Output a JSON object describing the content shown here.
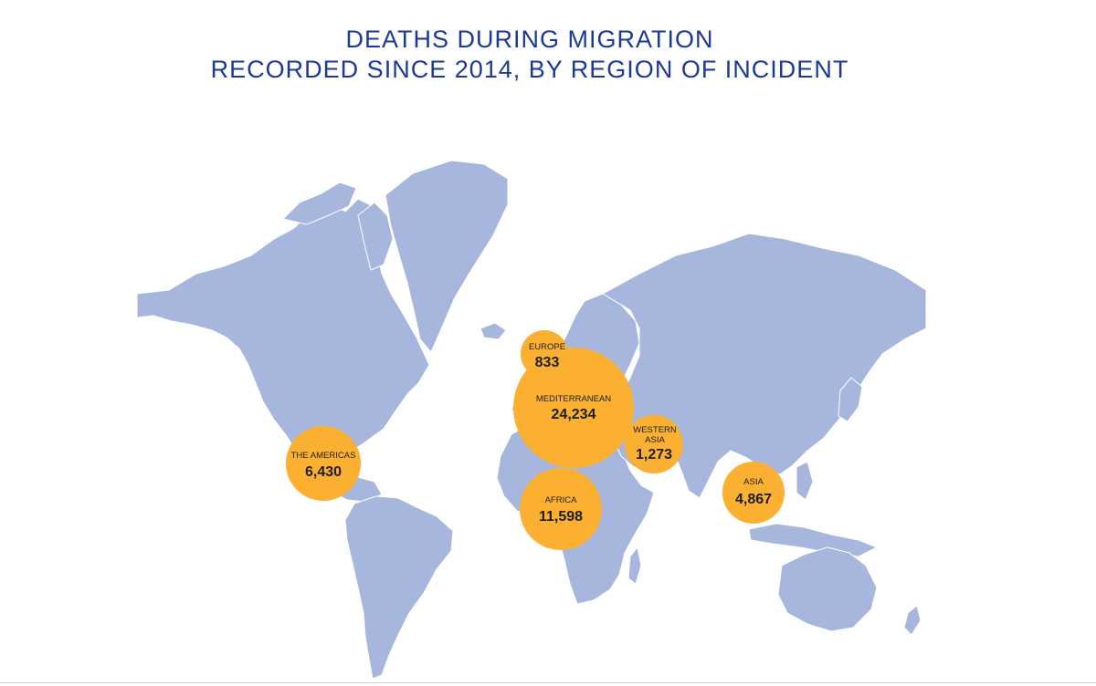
{
  "title": {
    "line1": "DEATHS DURING MIGRATION",
    "line2": "RECORDED SINCE 2014, BY REGION OF INCIDENT"
  },
  "colors": {
    "title": "#1b3a97",
    "land": "#a6b6dc",
    "bubble": "#fbb031",
    "label": "#1d1d1d"
  },
  "regions": [
    {
      "id": "europe",
      "name": "EUROPE",
      "value": "833",
      "deaths": 833
    },
    {
      "id": "mediterranean",
      "name": "MEDITERRANEAN",
      "value": "24,234",
      "deaths": 24234
    },
    {
      "id": "western-asia",
      "name_lines": [
        "WESTERN",
        "ASIA"
      ],
      "value": "1,273",
      "deaths": 1273
    },
    {
      "id": "the-americas",
      "name": "THE AMERICAS",
      "value": "6,430",
      "deaths": 6430
    },
    {
      "id": "africa",
      "name": "AFRICA",
      "value": "11,598",
      "deaths": 11598
    },
    {
      "id": "asia",
      "name": "ASIA",
      "value": "4,867",
      "deaths": 4867
    }
  ]
}
